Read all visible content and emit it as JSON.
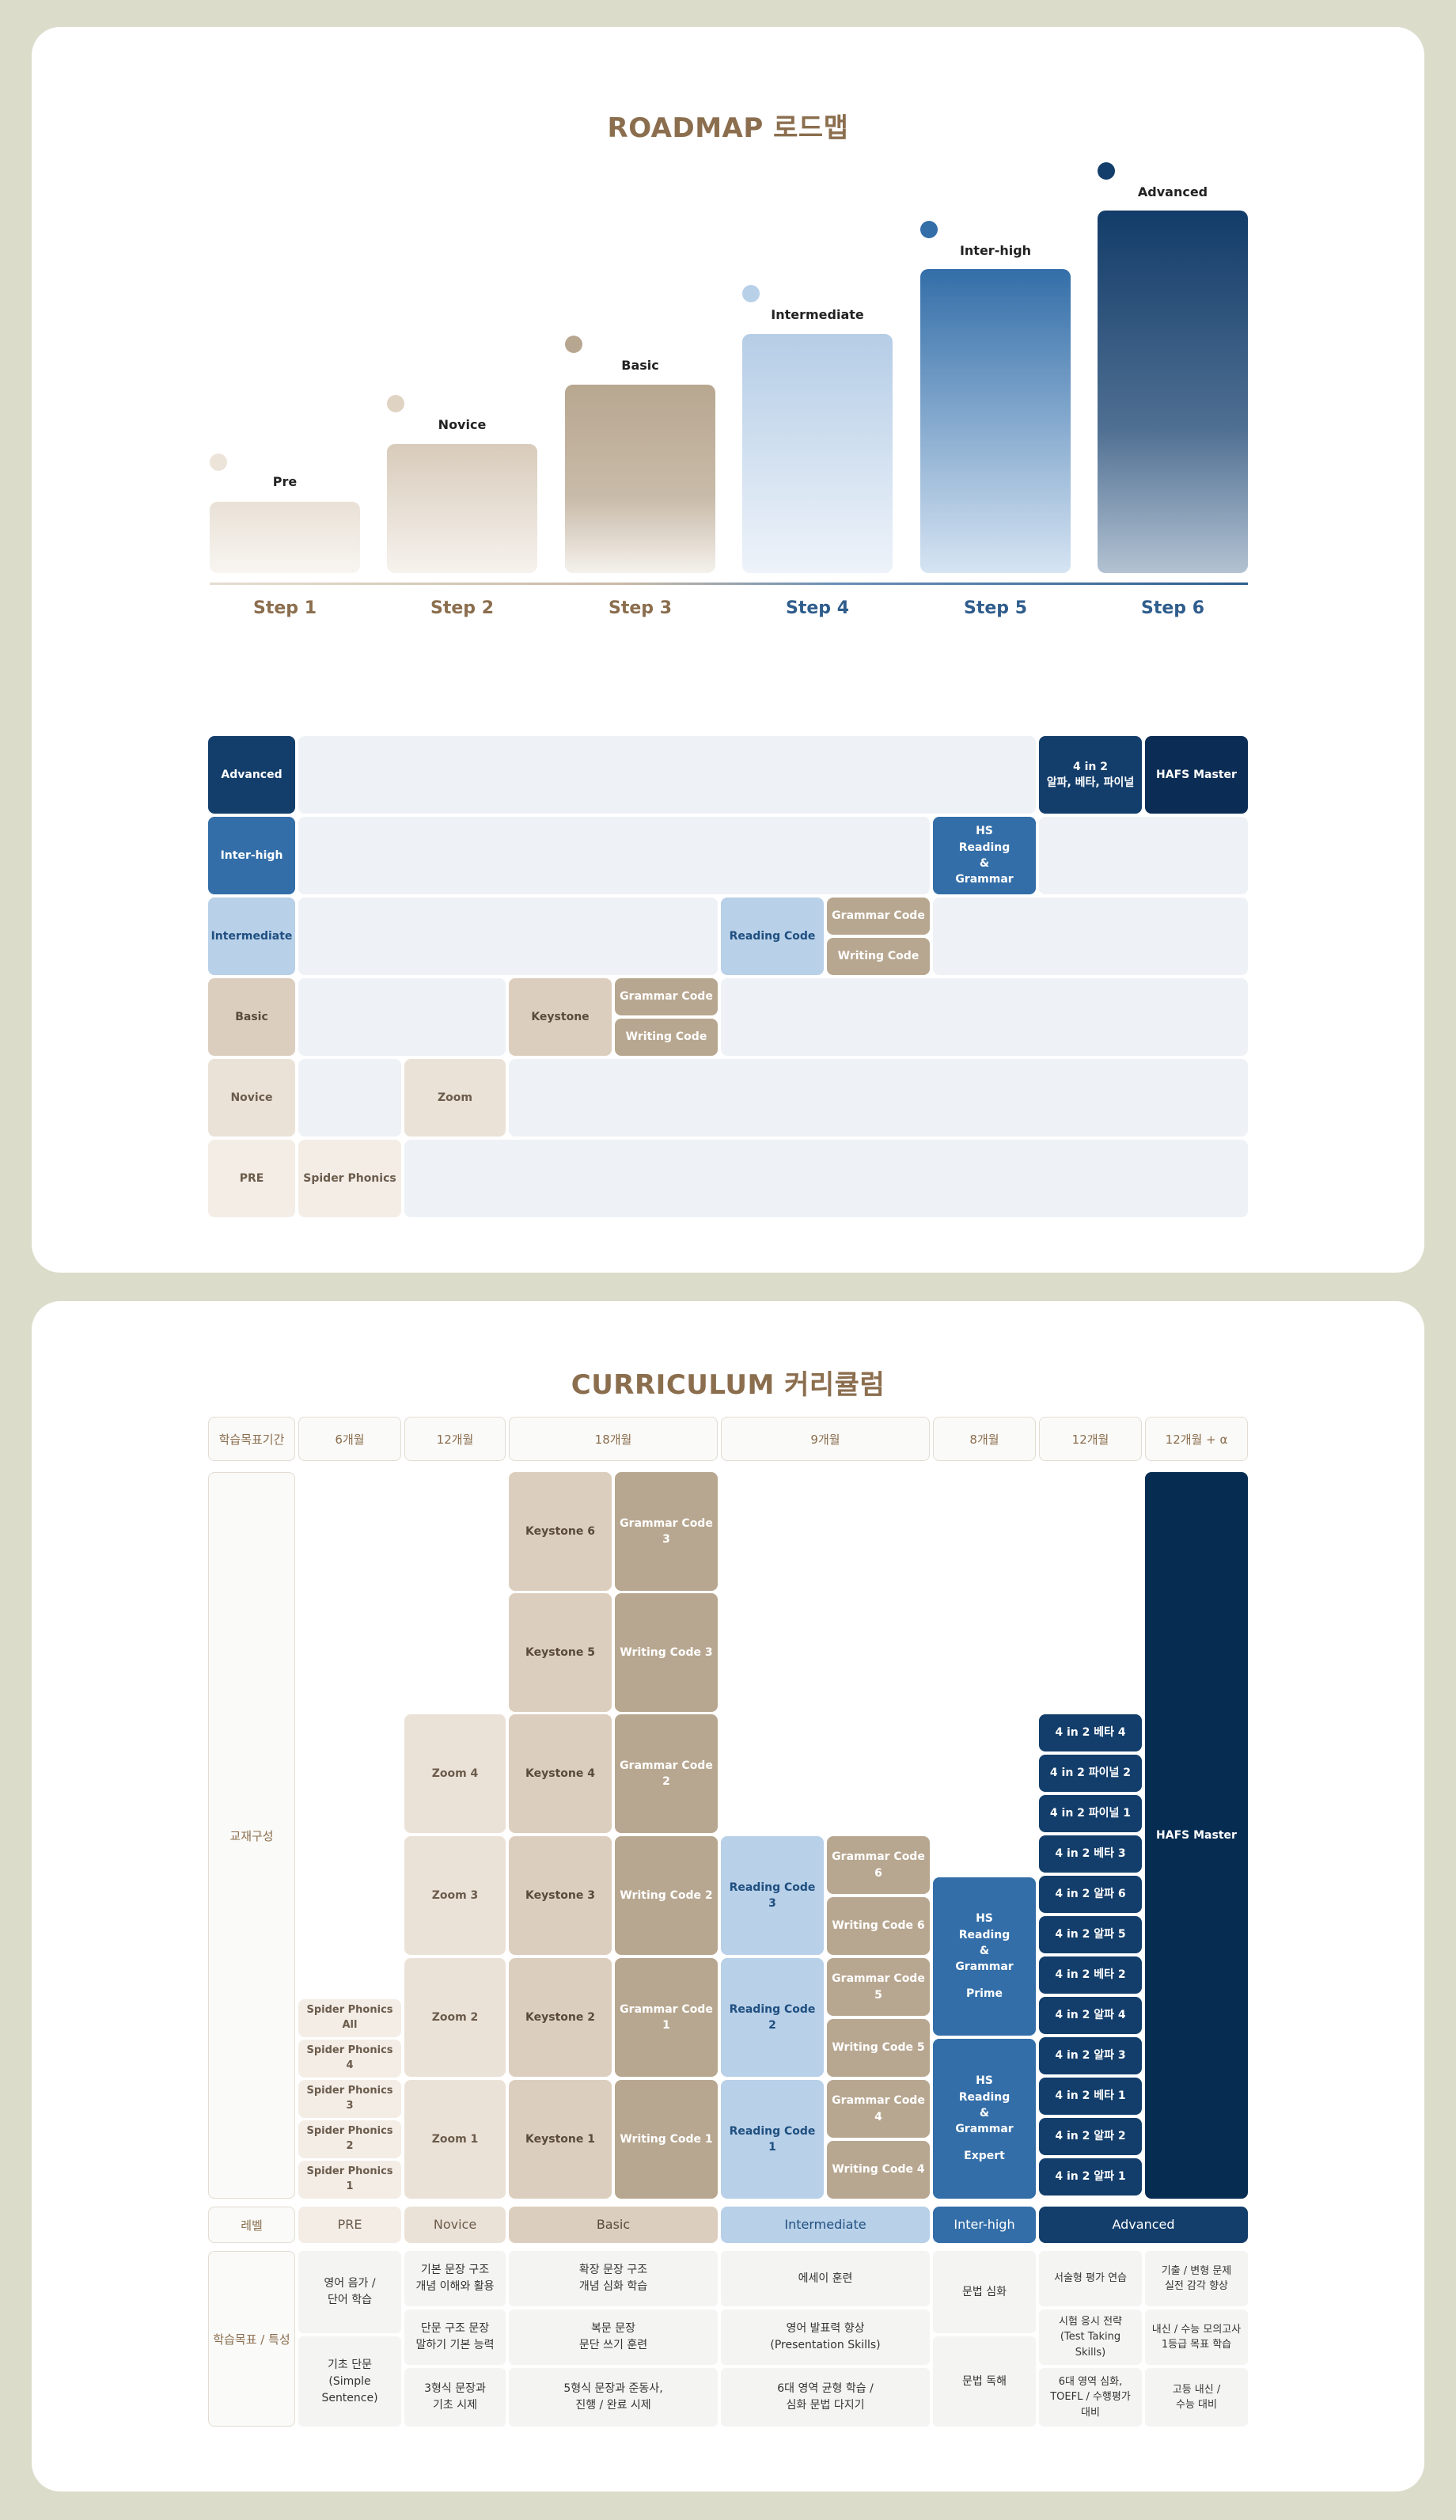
{
  "roadmap": {
    "title": "ROADMAP 로드맵",
    "levels": [
      {
        "label": "Pre",
        "step": "Step 1",
        "color": "#e9e1d6"
      },
      {
        "label": "Novice",
        "step": "Step 2",
        "color": "#d8cbbb"
      },
      {
        "label": "Basic",
        "step": "Step 3",
        "color": "#b8a790"
      },
      {
        "label": "Intermediate",
        "step": "Step 4",
        "color": "#b8d0e8"
      },
      {
        "label": "Inter-high",
        "step": "Step 5",
        "color": "#336ea8"
      },
      {
        "label": "Advanced",
        "step": "Step 6",
        "color": "#133e6b"
      }
    ],
    "grid": {
      "rows": [
        "Advanced",
        "Inter-high",
        "Intermediate",
        "Basic",
        "Novice",
        "PRE"
      ],
      "items": {
        "spider_phonics": "Spider Phonics",
        "zoom": "Zoom",
        "keystone": "Keystone",
        "grammar_code_basic": "Grammar Code",
        "writing_code_basic": "Writing Code",
        "reading_code": "Reading Code",
        "grammar_code_inter": "Grammar Code",
        "writing_code_inter": "Writing Code",
        "hs_reading_grammar": "HS\nReading\n&\nGrammar",
        "four_in_two": "4 in 2\n알파, 베타, 파이널",
        "hafs_master": "HAFS Master"
      }
    }
  },
  "curriculum": {
    "title": "CURRICULUM 커리큘럼",
    "period_label": "학습목표기간",
    "periods": [
      "6개월",
      "12개월",
      "18개월",
      "9개월",
      "8개월",
      "12개월",
      "12개월 + α"
    ],
    "materials_label": "교재구성",
    "spider": [
      "Spider Phonics All",
      "Spider Phonics 4",
      "Spider Phonics 3",
      "Spider Phonics 2",
      "Spider Phonics 1"
    ],
    "zoom": [
      "Zoom 4",
      "Zoom 3",
      "Zoom 2",
      "Zoom 1"
    ],
    "keystone": [
      "Keystone 6",
      "Keystone 5",
      "Keystone 4",
      "Keystone 3",
      "Keystone 2",
      "Keystone 1"
    ],
    "codes_basic": [
      "Grammar Code 3",
      "Writing Code 3",
      "Grammar Code 2",
      "Writing Code 2",
      "Grammar Code 1",
      "Writing Code 1"
    ],
    "reading": [
      "Reading Code 3",
      "Reading Code 2",
      "Reading Code 1"
    ],
    "codes_inter": [
      "Grammar Code 6",
      "Writing Code 6",
      "Grammar Code 5",
      "Writing Code 5",
      "Grammar Code 4",
      "Writing Code 4"
    ],
    "hs": [
      {
        "title": "HS\nReading\n&\nGrammar",
        "sub": "Prime"
      },
      {
        "title": "HS\nReading\n&\nGrammar",
        "sub": "Expert"
      }
    ],
    "four_in_two": [
      "4 in 2 베타 4",
      "4 in 2 파이널 2",
      "4 in 2 파이널 1",
      "4 in 2 베타 3",
      "4 in 2 알파 6",
      "4 in 2 알파 5",
      "4 in 2 베타 2",
      "4 in 2 알파 4",
      "4 in 2 알파 3",
      "4 in 2 베타 1",
      "4 in 2 알파 2",
      "4 in 2 알파 1"
    ],
    "hafs": "HAFS Master",
    "level_label": "레벨",
    "levels": [
      "PRE",
      "Novice",
      "Basic",
      "Intermediate",
      "Inter-high",
      "Advanced"
    ],
    "goals_label": "학습목표 / 특성",
    "goals": {
      "pre_1": "영어 음가 /\n단어 학습",
      "pre_2": "기초 단문\n(Simple\nSentence)",
      "novice_1": "기본 문장 구조\n개념 이해와 활용",
      "novice_2": "단문 구조 문장\n말하기 기본 능력",
      "novice_3": "3형식 문장과\n기초 시제",
      "basic_1": "확장 문장 구조\n개념 심화 학습",
      "basic_2": "복문 문장\n문단 쓰기 훈련",
      "basic_3": "5형식 문장과 준동사,\n진행 / 완료 시제",
      "inter_1": "에세이 훈련",
      "inter_2": "영어 발표력 향상\n(Presentation Skills)",
      "inter_3": "6대 영역 균형 학습 /\n심화 문법 다지기",
      "ih_1": "문법 심화",
      "ih_2": "문법 독해",
      "adv1_1": "서술형 평가 연습",
      "adv1_2": "시험 응시 전략\n(Test Taking\nSkills)",
      "adv1_3": "6대 영역 심화,\nTOEFL / 수행평가\n대비",
      "adv2_1": "기출 / 변형 문제\n실전 감각 향상",
      "adv2_2": "내신 / 수능 모의고사\n1등급 목표 학습",
      "adv2_3": "고등 내신 /\n수능 대비"
    }
  }
}
